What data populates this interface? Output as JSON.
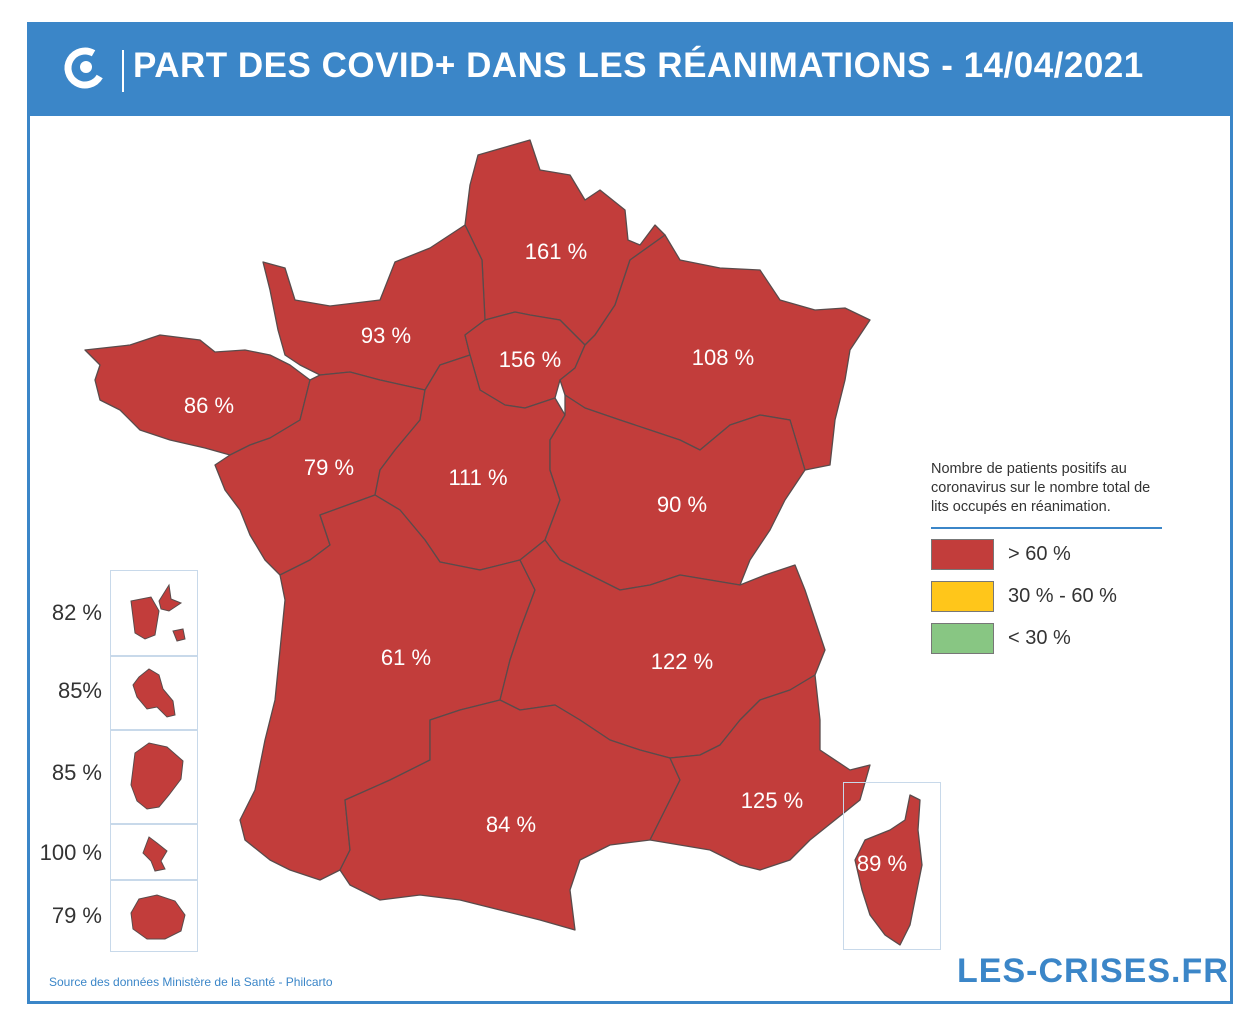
{
  "title": "PART DES COVID+ DANS LES RÉANIMATIONS - 14/04/2021",
  "colors": {
    "frame": "#3b86c8",
    "high": "#c23d3b",
    "mid": "#ffc61a",
    "low": "#88c683"
  },
  "regions": [
    {
      "label": "161 %"
    },
    {
      "label": "93 %"
    },
    {
      "label": "156 %"
    },
    {
      "label": "108 %"
    },
    {
      "label": "86 %"
    },
    {
      "label": "79 %"
    },
    {
      "label": "111 %"
    },
    {
      "label": "90 %"
    },
    {
      "label": "61 %"
    },
    {
      "label": "122 %"
    },
    {
      "label": "84 %"
    },
    {
      "label": "125 %"
    },
    {
      "label": "89 %"
    }
  ],
  "overseas": [
    {
      "label": "82 %"
    },
    {
      "label": "85%"
    },
    {
      "label": "85 %"
    },
    {
      "label": "100 %"
    },
    {
      "label": "79 %"
    }
  ],
  "legend": {
    "description": "Nombre de patients positifs au coronavirus sur le nombre total de lits occupés en réanimation.",
    "items": [
      {
        "label": "> 60 %",
        "color": "#c23d3b"
      },
      {
        "label": "30 % - 60 %",
        "color": "#ffc61a"
      },
      {
        "label": "< 30 %",
        "color": "#88c683"
      }
    ]
  },
  "source": "Source des données Ministère de la Santé - Philcarto",
  "brand": "LES-CRISES.FR"
}
